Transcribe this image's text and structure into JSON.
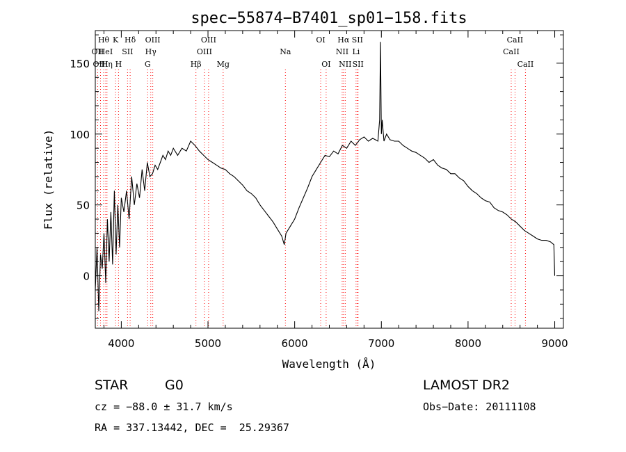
{
  "chart_data": {
    "type": "line",
    "title": "spec−55874−B7401_sp01−158.fits",
    "xlabel": "Wavelength (Å)",
    "ylabel": "Flux (relative)",
    "xlim": [
      3700,
      9100
    ],
    "ylim": [
      -37,
      173
    ],
    "xticks": [
      4000,
      5000,
      6000,
      7000,
      8000,
      9000
    ],
    "yticks": [
      0,
      50,
      100,
      150
    ],
    "grid": false,
    "line_color": "#000000",
    "marker_color": "#ff0000",
    "x": [
      3700,
      3720,
      3740,
      3760,
      3780,
      3800,
      3820,
      3840,
      3860,
      3880,
      3900,
      3920,
      3940,
      3960,
      3980,
      4000,
      4030,
      4060,
      4090,
      4120,
      4150,
      4180,
      4210,
      4240,
      4270,
      4300,
      4330,
      4360,
      4390,
      4420,
      4450,
      4480,
      4510,
      4540,
      4570,
      4600,
      4650,
      4700,
      4750,
      4800,
      4850,
      4900,
      4950,
      5000,
      5050,
      5100,
      5150,
      5200,
      5250,
      5300,
      5350,
      5400,
      5450,
      5500,
      5550,
      5600,
      5650,
      5700,
      5750,
      5800,
      5850,
      5880,
      5900,
      5950,
      6000,
      6050,
      6100,
      6150,
      6200,
      6250,
      6300,
      6350,
      6400,
      6450,
      6500,
      6550,
      6600,
      6650,
      6700,
      6750,
      6800,
      6850,
      6900,
      6930,
      6960,
      6980,
      6990,
      7000,
      7010,
      7030,
      7060,
      7100,
      7150,
      7200,
      7250,
      7300,
      7350,
      7400,
      7450,
      7500,
      7550,
      7600,
      7650,
      7700,
      7750,
      7800,
      7850,
      7900,
      7950,
      8000,
      8050,
      8100,
      8150,
      8200,
      8250,
      8300,
      8350,
      8400,
      8450,
      8500,
      8550,
      8600,
      8650,
      8700,
      8750,
      8800,
      8850,
      8900,
      8950,
      8990,
      9000
    ],
    "y": [
      -10,
      20,
      -25,
      15,
      5,
      30,
      -5,
      40,
      10,
      45,
      8,
      60,
      15,
      50,
      20,
      55,
      45,
      60,
      40,
      70,
      50,
      65,
      55,
      75,
      60,
      80,
      70,
      72,
      78,
      75,
      80,
      85,
      82,
      88,
      85,
      90,
      85,
      90,
      88,
      95,
      92,
      88,
      85,
      82,
      80,
      78,
      76,
      75,
      72,
      70,
      67,
      64,
      60,
      58,
      55,
      50,
      46,
      42,
      38,
      33,
      28,
      22,
      30,
      35,
      40,
      48,
      55,
      62,
      70,
      75,
      80,
      85,
      84,
      88,
      86,
      92,
      90,
      95,
      92,
      96,
      98,
      95,
      97,
      96,
      95,
      110,
      165,
      100,
      110,
      95,
      100,
      96,
      95,
      95,
      92,
      90,
      88,
      87,
      85,
      83,
      80,
      82,
      78,
      76,
      75,
      72,
      72,
      69,
      67,
      63,
      60,
      58,
      55,
      53,
      52,
      48,
      46,
      45,
      43,
      40,
      38,
      35,
      32,
      30,
      28,
      26,
      25,
      25,
      24,
      22,
      0
    ],
    "lines": [
      {
        "label": "Hθ",
        "wavelength": 3797,
        "row": 1
      },
      {
        "label": "OII",
        "wavelength": 3727,
        "row": 2
      },
      {
        "label": "OIII",
        "wavelength": 3760,
        "row": 3
      },
      {
        "label": "HeI",
        "wavelength": 3820,
        "row": 2
      },
      {
        "label": "Hη",
        "wavelength": 3835,
        "row": 3
      },
      {
        "label": "K",
        "wavelength": 3934,
        "row": 1
      },
      {
        "label": "SII",
        "wavelength": 4072,
        "row": 2
      },
      {
        "label": "H",
        "wavelength": 3968,
        "row": 3
      },
      {
        "label": "Hδ",
        "wavelength": 4102,
        "row": 1
      },
      {
        "label": "OIII",
        "wavelength": 4363,
        "row": 1
      },
      {
        "label": "Hγ",
        "wavelength": 4340,
        "row": 2
      },
      {
        "label": "G",
        "wavelength": 4304,
        "row": 3
      },
      {
        "label": "OIII",
        "wavelength": 5007,
        "row": 1
      },
      {
        "label": "OIII",
        "wavelength": 4959,
        "row": 2
      },
      {
        "label": "Hβ",
        "wavelength": 4861,
        "row": 3
      },
      {
        "label": "Mg",
        "wavelength": 5175,
        "row": 3
      },
      {
        "label": "Na",
        "wavelength": 5893,
        "row": 2
      },
      {
        "label": "OI",
        "wavelength": 6300,
        "row": 1
      },
      {
        "label": "OI",
        "wavelength": 6363,
        "row": 3
      },
      {
        "label": "Hα",
        "wavelength": 6563,
        "row": 1
      },
      {
        "label": "SII",
        "wavelength": 6724,
        "row": 1
      },
      {
        "label": "NII",
        "wavelength": 6548,
        "row": 2
      },
      {
        "label": "Li",
        "wavelength": 6708,
        "row": 2
      },
      {
        "label": "NII",
        "wavelength": 6583,
        "row": 3
      },
      {
        "label": "SII",
        "wavelength": 6731,
        "row": 3
      },
      {
        "label": "CaII",
        "wavelength": 8542,
        "row": 1
      },
      {
        "label": "CaII",
        "wavelength": 8498,
        "row": 2
      },
      {
        "label": "CaII",
        "wavelength": 8662,
        "row": 3
      }
    ]
  },
  "info": {
    "class": "STAR",
    "subclass": "G0",
    "survey": "LAMOST DR2",
    "cz": "cz = −88.0 ± 31.7 km/s",
    "obs_date": "Obs−Date: 20111108",
    "radec": "RA = 337.13442, DEC =  25.29367"
  }
}
